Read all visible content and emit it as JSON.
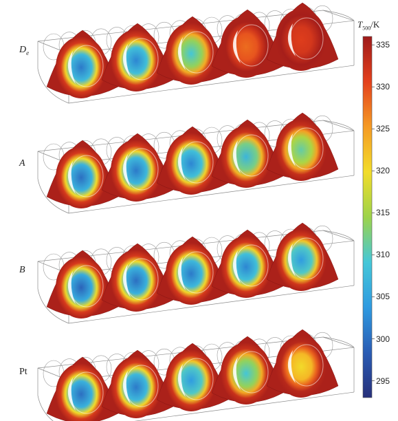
{
  "rows": [
    {
      "symbol": "D",
      "subscript": "e",
      "italic": true
    },
    {
      "symbol": "A",
      "subscript": "",
      "italic": true
    },
    {
      "symbol": "B",
      "subscript": "",
      "italic": true
    },
    {
      "symbol": "Pt",
      "subscript": "",
      "italic": false
    }
  ],
  "colorbar": {
    "symbol": "T",
    "subscript": "500",
    "unit": "/K",
    "min": 293,
    "max": 336,
    "ticks": [
      335,
      330,
      325,
      320,
      315,
      310,
      305,
      300,
      295
    ],
    "colors": [
      "#27307a",
      "#2a5cb4",
      "#2f9ae0",
      "#45c7d8",
      "#9dd34a",
      "#f2dc2a",
      "#f59a23",
      "#e3401c",
      "#9e1a1a"
    ]
  },
  "panels": [
    {
      "centers": [
        301,
        302,
        309,
        328,
        331
      ],
      "rim": 335
    },
    {
      "centers": [
        300,
        301,
        302,
        307,
        311
      ],
      "rim": 335
    },
    {
      "centers": [
        299,
        300,
        301,
        302,
        304
      ],
      "rim": 335
    },
    {
      "centers": [
        300,
        301,
        304,
        309,
        320
      ],
      "rim": 335
    }
  ]
}
